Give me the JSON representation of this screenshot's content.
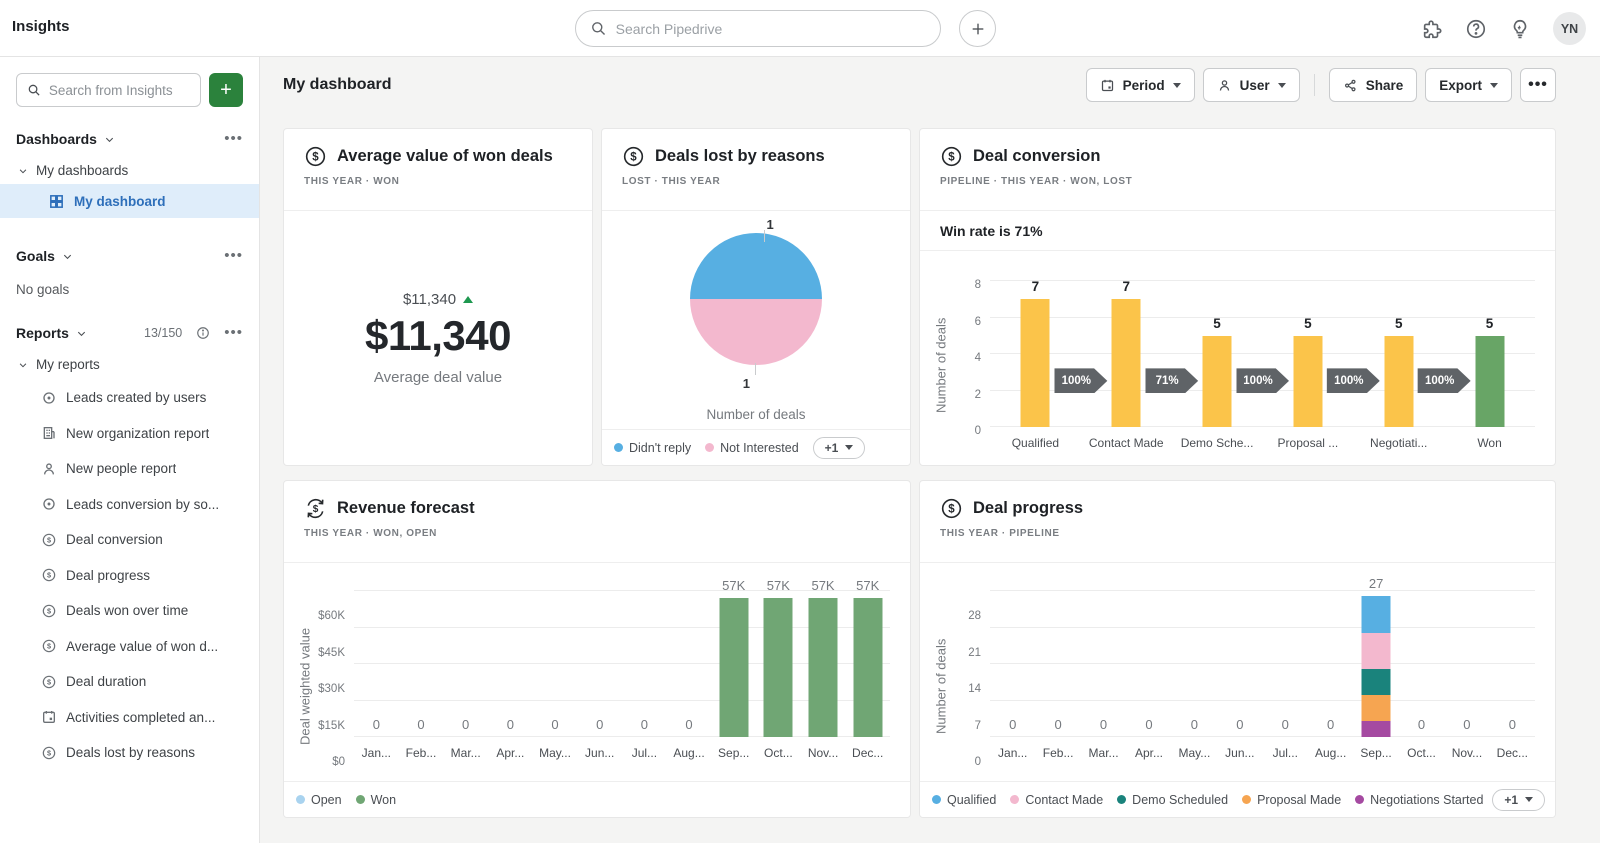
{
  "topbar": {
    "app_title": "Insights",
    "search_placeholder": "Search Pipedrive",
    "avatar_initials": "YN"
  },
  "sidebar": {
    "search_placeholder": "Search from Insights",
    "dashboards": {
      "label": "Dashboards",
      "group": "My dashboards",
      "items": [
        {
          "label": "My dashboard",
          "selected": true
        }
      ]
    },
    "goals": {
      "label": "Goals",
      "empty_text": "No goals"
    },
    "reports": {
      "label": "Reports",
      "count": "13/150",
      "group": "My reports",
      "items": [
        {
          "label": "Leads created by users",
          "icon": "lead"
        },
        {
          "label": "New organization report",
          "icon": "organization"
        },
        {
          "label": "New people report",
          "icon": "person"
        },
        {
          "label": "Leads conversion by so...",
          "icon": "lead"
        },
        {
          "label": "Deal conversion",
          "icon": "deal"
        },
        {
          "label": "Deal progress",
          "icon": "deal"
        },
        {
          "label": "Deals won over time",
          "icon": "deal"
        },
        {
          "label": "Average value of won d...",
          "icon": "deal"
        },
        {
          "label": "Deal duration",
          "icon": "deal"
        },
        {
          "label": "Activities completed an...",
          "icon": "activity"
        },
        {
          "label": "Deals lost by reasons",
          "icon": "deal"
        }
      ]
    }
  },
  "toolbar": {
    "page_title": "My dashboard",
    "period_label": "Period",
    "user_label": "User",
    "share_label": "Share",
    "export_label": "Export"
  },
  "cards": {
    "avg_value": {
      "title": "Average value of won deals",
      "filters": "THIS YEAR  ·  WON",
      "delta_value": "$11,340",
      "big_value": "$11,340",
      "caption": "Average deal value"
    },
    "deals_lost": {
      "title": "Deals lost by reasons",
      "filters": "LOST  ·  THIS YEAR"
    },
    "deal_conversion": {
      "title": "Deal conversion",
      "filters": "PIPELINE  ·  THIS YEAR  ·  WON, LOST",
      "note": "Win rate is 71%"
    },
    "revenue_forecast": {
      "title": "Revenue forecast",
      "filters": "THIS YEAR  ·  WON, OPEN"
    },
    "deal_progress": {
      "title": "Deal progress",
      "filters": "THIS YEAR  ·  PIPELINE"
    }
  },
  "chart_data": [
    {
      "id": "deals_lost_pie",
      "type": "pie",
      "title": "Deals lost by reasons",
      "labels": [
        "Didn't reply",
        "Not Interested"
      ],
      "values": [
        1,
        1
      ],
      "colors": [
        "#57AFE2",
        "#F3B8CE"
      ],
      "slice_labels": [
        "1",
        "1"
      ],
      "axis_caption": "Number of deals",
      "legend_position": "bottom",
      "legend_more": "+1"
    },
    {
      "id": "deal_conversion",
      "type": "bar",
      "title": "Deal conversion",
      "annotation": "Win rate is 71%",
      "categories": [
        "Qualified",
        "Contact Made",
        "Demo Sche...",
        "Proposal ...",
        "Negotiati...",
        "Won"
      ],
      "values": [
        7,
        7,
        5,
        5,
        5,
        5
      ],
      "bar_colors": [
        "#FBC44A",
        "#FBC44A",
        "#FBC44A",
        "#FBC44A",
        "#FBC44A",
        "#68A566"
      ],
      "bar_labels": [
        "7",
        "7",
        "5",
        "5",
        "5",
        "5"
      ],
      "conversion_rates": [
        "100%",
        "71%",
        "100%",
        "100%",
        "100%"
      ],
      "ylabel": "Number of deals",
      "yticks": [
        0,
        2,
        4,
        6,
        8
      ],
      "ylim": [
        0,
        8
      ],
      "grid": true,
      "legend_position": "none"
    },
    {
      "id": "revenue_forecast",
      "type": "bar",
      "title": "Revenue forecast",
      "categories": [
        "Jan...",
        "Feb...",
        "Mar...",
        "Apr...",
        "May...",
        "Jun...",
        "Jul...",
        "Aug...",
        "Sep...",
        "Oct...",
        "Nov...",
        "Dec..."
      ],
      "values": [
        0,
        0,
        0,
        0,
        0,
        0,
        0,
        0,
        57000,
        57000,
        57000,
        57000
      ],
      "bar_labels": [
        "0",
        "0",
        "0",
        "0",
        "0",
        "0",
        "0",
        "0",
        "57K",
        "57K",
        "57K",
        "57K"
      ],
      "bar_color": "#70A674",
      "ylabel": "Deal weighted value",
      "yticks": [
        0,
        15000,
        30000,
        45000,
        60000
      ],
      "ytick_labels": [
        "$0",
        "$15K",
        "$30K",
        "$45K",
        "$60K"
      ],
      "ylim": [
        0,
        60000
      ],
      "grid": true,
      "legend_position": "bottom",
      "legend": [
        {
          "label": "Open",
          "color": "#A9D3EF"
        },
        {
          "label": "Won",
          "color": "#70A674"
        }
      ]
    },
    {
      "id": "deal_progress",
      "type": "stacked-bar",
      "title": "Deal progress",
      "categories": [
        "Jan...",
        "Feb...",
        "Mar...",
        "Apr...",
        "May...",
        "Jun...",
        "Jul...",
        "Aug...",
        "Sep...",
        "Oct...",
        "Nov...",
        "Dec..."
      ],
      "series": [
        {
          "name": "Qualified",
          "color": "#57AFE2",
          "values": [
            0,
            0,
            0,
            0,
            0,
            0,
            0,
            0,
            7,
            0,
            0,
            0
          ]
        },
        {
          "name": "Contact Made",
          "color": "#F3B8CE",
          "values": [
            0,
            0,
            0,
            0,
            0,
            0,
            0,
            0,
            7,
            0,
            0,
            0
          ]
        },
        {
          "name": "Demo Scheduled",
          "color": "#1A837C",
          "values": [
            0,
            0,
            0,
            0,
            0,
            0,
            0,
            0,
            5,
            0,
            0,
            0
          ]
        },
        {
          "name": "Proposal Made",
          "color": "#F6A551",
          "values": [
            0,
            0,
            0,
            0,
            0,
            0,
            0,
            0,
            5,
            0,
            0,
            0
          ]
        },
        {
          "name": "Negotiations Started",
          "color": "#A54AA1",
          "values": [
            0,
            0,
            0,
            0,
            0,
            0,
            0,
            0,
            3,
            0,
            0,
            0
          ]
        }
      ],
      "stack_order_bottom_to_top": [
        "Negotiations Started",
        "Proposal Made",
        "Demo Scheduled",
        "Contact Made",
        "Qualified"
      ],
      "total_labels": [
        "0",
        "0",
        "0",
        "0",
        "0",
        "0",
        "0",
        "0",
        "27",
        "0",
        "0",
        "0"
      ],
      "ylabel": "Number of deals",
      "yticks": [
        0,
        7,
        14,
        21,
        28
      ],
      "ylim": [
        0,
        28
      ],
      "grid": true,
      "legend_position": "bottom",
      "legend_more": "+1"
    }
  ]
}
